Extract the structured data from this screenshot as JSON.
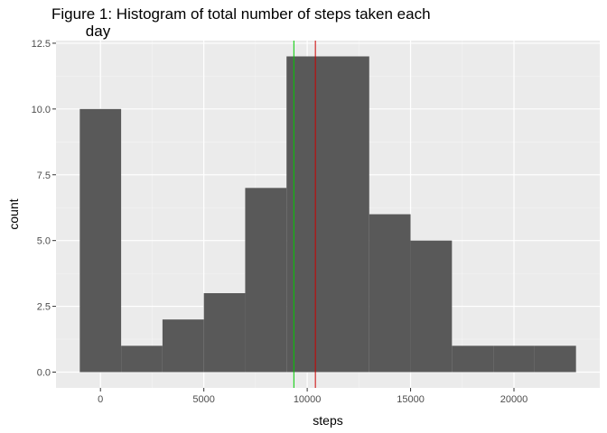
{
  "chart_data": {
    "type": "bar",
    "title": "Figure 1: Histogram of total number of steps taken each\n        day",
    "xlabel": "steps",
    "ylabel": "count",
    "xlim": [
      -2150,
      24150
    ],
    "ylim": [
      -0.6,
      12.6
    ],
    "x_ticks": [
      0,
      5000,
      10000,
      15000,
      20000
    ],
    "x_tick_labels": [
      "0",
      "5000",
      "10000",
      "15000",
      "20000"
    ],
    "y_ticks": [
      0,
      2.5,
      5,
      7.5,
      10,
      12.5
    ],
    "y_tick_labels": [
      "0.0",
      "2.5",
      "5.0",
      "7.5",
      "10.0",
      "12.5"
    ],
    "bins": [
      {
        "x0": -1000,
        "x1": 1000,
        "count": 10
      },
      {
        "x0": 1000,
        "x1": 3000,
        "count": 1
      },
      {
        "x0": 3000,
        "x1": 5000,
        "count": 2
      },
      {
        "x0": 5000,
        "x1": 7000,
        "count": 3
      },
      {
        "x0": 7000,
        "x1": 9000,
        "count": 7
      },
      {
        "x0": 9000,
        "x1": 11000,
        "count": 12
      },
      {
        "x0": 11000,
        "x1": 13000,
        "count": 12
      },
      {
        "x0": 13000,
        "x1": 15000,
        "count": 6
      },
      {
        "x0": 15000,
        "x1": 17000,
        "count": 5
      },
      {
        "x0": 17000,
        "x1": 19000,
        "count": 1
      },
      {
        "x0": 19000,
        "x1": 21000,
        "count": 1
      },
      {
        "x0": 21000,
        "x1": 23000,
        "count": 1
      }
    ],
    "vlines": [
      {
        "x": 9354,
        "color": "#00cc00"
      },
      {
        "x": 10395,
        "color": "#cc0000"
      }
    ],
    "bar_color": "#595959",
    "panel_background": "#ebebeb",
    "grid": true
  }
}
